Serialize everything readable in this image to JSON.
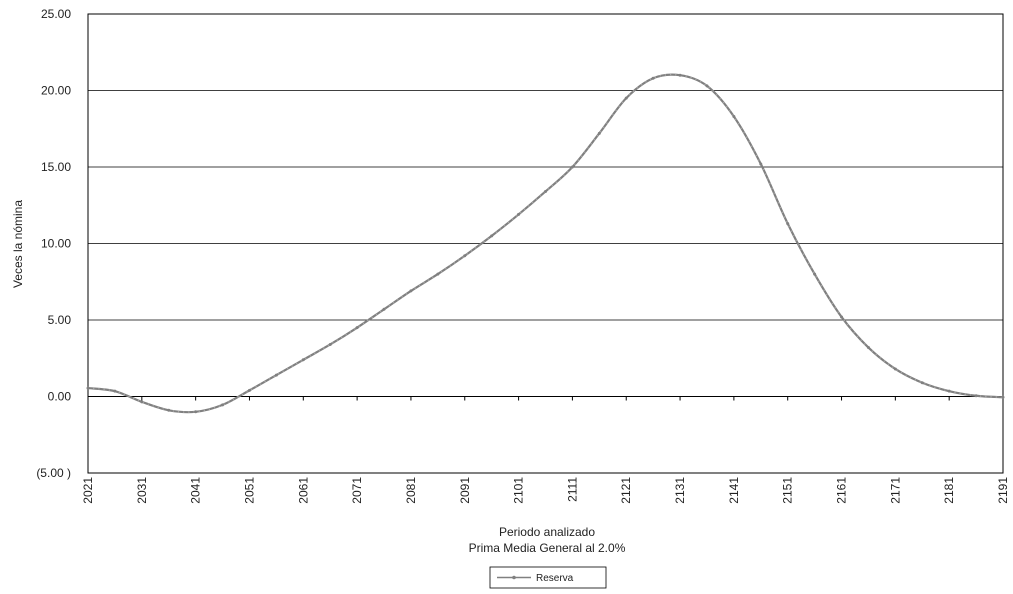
{
  "chart_data": {
    "type": "line",
    "title": "",
    "xlabel": "Periodo analizado",
    "subtitle": "Prima Media General al 2.0%",
    "ylabel": "Veces la nómina",
    "xlim": [
      2021,
      2191
    ],
    "ylim": [
      -5,
      25
    ],
    "x_ticks": [
      "2021",
      "2031",
      "2041",
      "2051",
      "2061",
      "2071",
      "2081",
      "2091",
      "2101",
      "2111",
      "2121",
      "2131",
      "2141",
      "2151",
      "2161",
      "2171",
      "2181",
      "2191"
    ],
    "y_ticks": [
      "(5.00 )",
      "0.00",
      "5.00",
      "10.00",
      "15.00",
      "20.00",
      "25.00"
    ],
    "y_tick_values": [
      -5,
      0,
      5,
      10,
      15,
      20,
      25
    ],
    "grid": true,
    "legend_position": "bottom-center",
    "series": [
      {
        "name": "Reserva",
        "color": "#808080",
        "x": [
          2021,
          2026,
          2031,
          2036,
          2041,
          2046,
          2051,
          2056,
          2061,
          2066,
          2071,
          2076,
          2081,
          2086,
          2091,
          2096,
          2101,
          2106,
          2111,
          2116,
          2121,
          2126,
          2131,
          2136,
          2141,
          2146,
          2151,
          2156,
          2161,
          2166,
          2171,
          2176,
          2181,
          2186,
          2191
        ],
        "values": [
          0.55,
          0.35,
          -0.35,
          -0.9,
          -1.0,
          -0.55,
          0.4,
          1.4,
          2.4,
          3.4,
          4.5,
          5.7,
          6.9,
          8.0,
          9.2,
          10.5,
          11.9,
          13.4,
          15.0,
          17.2,
          19.5,
          20.8,
          21.0,
          20.3,
          18.3,
          15.2,
          11.3,
          8.0,
          5.2,
          3.2,
          1.8,
          0.9,
          0.35,
          0.05,
          -0.05
        ]
      }
    ]
  }
}
